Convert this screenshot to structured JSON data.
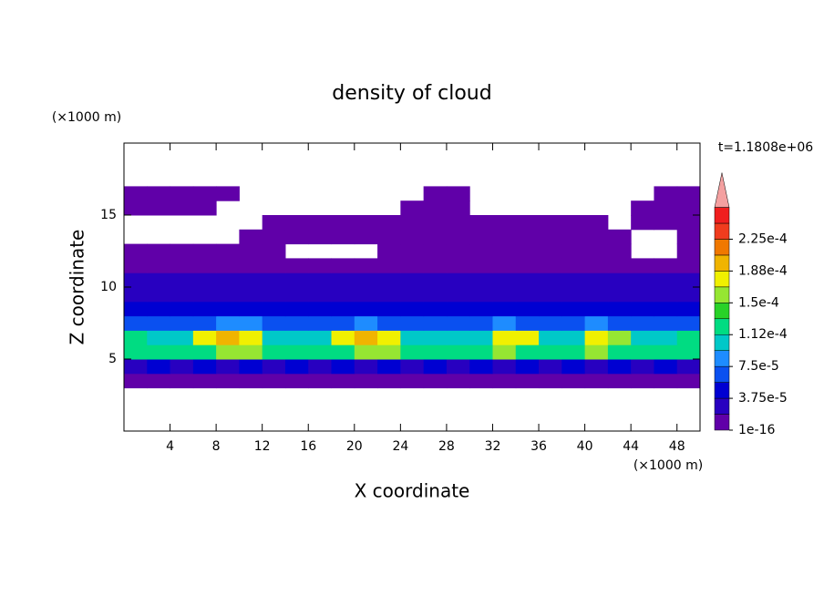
{
  "chart_data": {
    "type": "contour",
    "title": "density of cloud",
    "y_unit": "(×1000 m)",
    "x_unit": "(×1000 m)",
    "x_label": "X coordinate",
    "y_label": "Z coordinate",
    "annotation": "t=1.1808e+06",
    "xlim": [
      0,
      50
    ],
    "ylim": [
      0,
      20
    ],
    "xticks": [
      4,
      8,
      12,
      16,
      20,
      24,
      28,
      32,
      36,
      40,
      44,
      48
    ],
    "yticks": [
      5,
      10,
      15
    ],
    "x": [
      1,
      3,
      5,
      7,
      9,
      11,
      13,
      15,
      17,
      19,
      21,
      23,
      25,
      27,
      29,
      31,
      33,
      35,
      37,
      39,
      41,
      43,
      45,
      47,
      49
    ],
    "y": [
      0.5,
      1.5,
      2.5,
      3.5,
      4.5,
      5.5,
      6.5,
      7.5,
      8.5,
      9.5,
      10.5,
      11.5,
      12.5,
      13.5,
      14.5,
      15.5,
      16.5,
      17.5,
      18.5,
      19.5
    ],
    "values": [
      [
        null,
        null,
        null,
        null,
        null,
        null,
        null,
        null,
        null,
        null,
        null,
        null,
        null,
        null,
        null,
        null,
        null,
        null,
        null,
        null,
        null,
        null,
        null,
        null,
        null
      ],
      [
        null,
        null,
        null,
        null,
        null,
        null,
        null,
        null,
        null,
        null,
        null,
        null,
        null,
        null,
        null,
        null,
        null,
        null,
        null,
        null,
        null,
        null,
        null,
        null,
        null
      ],
      [
        null,
        null,
        null,
        null,
        null,
        null,
        null,
        null,
        null,
        null,
        null,
        null,
        null,
        null,
        null,
        null,
        null,
        null,
        null,
        null,
        null,
        null,
        null,
        null,
        null
      ],
      [
        3e-06,
        3e-06,
        3e-06,
        3e-06,
        3e-06,
        3e-06,
        3e-06,
        3e-06,
        3e-06,
        3e-06,
        3e-06,
        3e-06,
        3e-06,
        3e-06,
        3e-06,
        3e-06,
        3e-06,
        3e-06,
        3e-06,
        3e-06,
        3e-06,
        3e-06,
        3e-06,
        3e-06,
        3e-06
      ],
      [
        3.5e-05,
        4.5e-05,
        3.5e-05,
        4.5e-05,
        3.5e-05,
        4.5e-05,
        3.5e-05,
        4.5e-05,
        3.5e-05,
        4.5e-05,
        3.5e-05,
        4.5e-05,
        3.5e-05,
        4.5e-05,
        3.5e-05,
        4.5e-05,
        3.5e-05,
        4.5e-05,
        3.5e-05,
        4.5e-05,
        3.5e-05,
        4.5e-05,
        3.5e-05,
        4.5e-05,
        3.5e-05
      ],
      [
        0.00012,
        0.00012,
        0.00012,
        0.00012,
        0.00016,
        0.00016,
        0.00012,
        0.00012,
        0.00012,
        0.00012,
        0.00016,
        0.00016,
        0.00012,
        0.00012,
        0.00012,
        0.00012,
        0.00016,
        0.00012,
        0.00012,
        0.00012,
        0.00016,
        0.00012,
        0.00012,
        0.00012,
        0.00012
      ],
      [
        0.00013,
        0.0001,
        0.0001,
        0.000175,
        0.00019,
        0.00017,
        0.0001,
        0.0001,
        0.0001,
        0.00018,
        0.00019,
        0.00017,
        0.0001,
        0.0001,
        0.0001,
        0.0001,
        0.00018,
        0.00017,
        0.0001,
        0.0001,
        0.00018,
        0.00016,
        0.0001,
        0.0001,
        0.00012
      ],
      [
        6e-05,
        6e-05,
        6e-05,
        6e-05,
        8e-05,
        8e-05,
        6e-05,
        6e-05,
        6e-05,
        6e-05,
        8e-05,
        6e-05,
        6e-05,
        6e-05,
        6e-05,
        6e-05,
        8e-05,
        6e-05,
        6e-05,
        6e-05,
        8e-05,
        6e-05,
        6e-05,
        6e-05,
        6e-05
      ],
      [
        4.5e-05,
        4.5e-05,
        4.5e-05,
        4.5e-05,
        4.5e-05,
        4.5e-05,
        4.5e-05,
        4.5e-05,
        4.5e-05,
        4.5e-05,
        4.5e-05,
        4.5e-05,
        4.5e-05,
        4.5e-05,
        4.5e-05,
        4.5e-05,
        4.5e-05,
        4.5e-05,
        4.5e-05,
        4.5e-05,
        4.5e-05,
        4.5e-05,
        4.5e-05,
        4.5e-05,
        4.5e-05
      ],
      [
        3e-05,
        3e-05,
        3e-05,
        3e-05,
        3e-05,
        3e-05,
        3e-05,
        3e-05,
        3e-05,
        3e-05,
        3e-05,
        3e-05,
        3e-05,
        3e-05,
        3e-05,
        3e-05,
        3e-05,
        3e-05,
        3e-05,
        3e-05,
        3e-05,
        3e-05,
        3e-05,
        3e-05,
        3e-05
      ],
      [
        2e-05,
        2e-05,
        2e-05,
        2e-05,
        2e-05,
        2e-05,
        2e-05,
        2e-05,
        2e-05,
        2e-05,
        2e-05,
        2e-05,
        2e-05,
        2e-05,
        2e-05,
        2e-05,
        2e-05,
        2e-05,
        2e-05,
        2e-05,
        2e-05,
        2e-05,
        2e-05,
        2e-05,
        2e-05
      ],
      [
        1e-05,
        1e-05,
        1e-05,
        1e-05,
        1e-05,
        1e-05,
        1e-05,
        1e-05,
        1e-05,
        1e-05,
        1e-05,
        1e-05,
        1e-05,
        1e-05,
        1e-05,
        1e-05,
        1e-05,
        1e-05,
        1e-05,
        1e-05,
        1e-05,
        1e-05,
        1e-05,
        1e-05,
        1e-05
      ],
      [
        5e-06,
        5e-06,
        5e-06,
        5e-06,
        5e-06,
        5e-06,
        5e-06,
        null,
        null,
        null,
        null,
        5e-06,
        5e-06,
        5e-06,
        5e-06,
        5e-06,
        5e-06,
        5e-06,
        5e-06,
        5e-06,
        5e-06,
        5e-06,
        null,
        null,
        5e-06
      ],
      [
        null,
        null,
        null,
        null,
        null,
        3e-06,
        3e-06,
        3e-06,
        3e-06,
        3e-06,
        3e-06,
        3e-06,
        3e-06,
        3e-06,
        3e-06,
        3e-06,
        3e-06,
        3e-06,
        3e-06,
        3e-06,
        3e-06,
        3e-06,
        null,
        null,
        3e-06
      ],
      [
        null,
        null,
        null,
        null,
        null,
        null,
        3e-06,
        3e-06,
        3e-06,
        3e-06,
        3e-06,
        3e-06,
        3e-06,
        3e-06,
        3e-06,
        3e-06,
        3e-06,
        3e-06,
        3e-06,
        3e-06,
        3e-06,
        null,
        3e-06,
        3e-06,
        3e-06
      ],
      [
        3e-06,
        3e-06,
        3e-06,
        3e-06,
        null,
        null,
        null,
        null,
        null,
        null,
        null,
        null,
        3e-06,
        3e-06,
        3e-06,
        null,
        null,
        null,
        null,
        null,
        null,
        null,
        3e-06,
        3e-06,
        3e-06
      ],
      [
        3e-06,
        3e-06,
        3e-06,
        3e-06,
        3e-06,
        null,
        null,
        null,
        null,
        null,
        null,
        null,
        null,
        3e-06,
        3e-06,
        null,
        null,
        null,
        null,
        null,
        null,
        null,
        null,
        3e-06,
        3e-06
      ],
      [
        null,
        null,
        null,
        null,
        null,
        null,
        null,
        null,
        null,
        null,
        null,
        null,
        null,
        null,
        null,
        null,
        null,
        null,
        null,
        null,
        null,
        null,
        null,
        null,
        null
      ],
      [
        null,
        null,
        null,
        null,
        null,
        null,
        null,
        null,
        null,
        null,
        null,
        null,
        null,
        null,
        null,
        null,
        null,
        null,
        null,
        null,
        null,
        null,
        null,
        null,
        null
      ],
      [
        null,
        null,
        null,
        null,
        null,
        null,
        null,
        null,
        null,
        null,
        null,
        null,
        null,
        null,
        null,
        null,
        null,
        null,
        null,
        null,
        null,
        null,
        null,
        null,
        null
      ]
    ],
    "levels": [
      1e-16,
      1.875e-05,
      3.75e-05,
      5.625e-05,
      7.5e-05,
      9.375e-05,
      0.0001125,
      0.00013125,
      0.00015,
      0.00016875,
      0.0001875,
      0.00020625,
      0.000225,
      0.00024375
    ],
    "colors": [
      "#6000a8",
      "#2800c0",
      "#0000d2",
      "#0a50f0",
      "#1e8cff",
      "#00c8c8",
      "#00dc82",
      "#28d228",
      "#96e632",
      "#f0f000",
      "#f0b400",
      "#f07800",
      "#f03c1e",
      "#f01e1e"
    ],
    "extend_color": "#f4a0a0",
    "colorbar_ticks": [
      {
        "value": 1e-16,
        "label": "1e-16"
      },
      {
        "value": 3.75e-05,
        "label": "3.75e-5"
      },
      {
        "value": 7.5e-05,
        "label": "7.5e-5"
      },
      {
        "value": 0.0001125,
        "label": "1.12e-4"
      },
      {
        "value": 0.00015,
        "label": "1.5e-4"
      },
      {
        "value": 0.0001875,
        "label": "1.88e-4"
      },
      {
        "value": 0.000225,
        "label": "2.25e-4"
      }
    ]
  }
}
